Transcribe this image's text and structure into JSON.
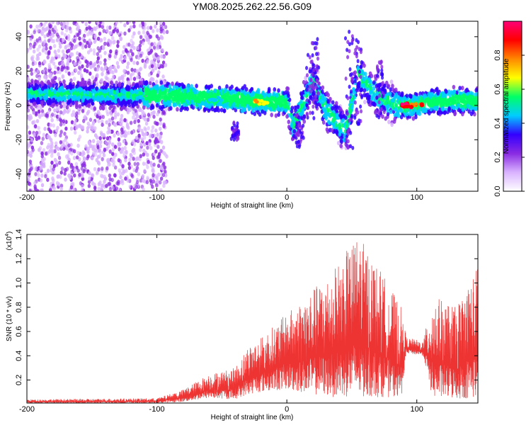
{
  "title": "YM08.2025.262.22.56.G09",
  "colors": {
    "snr_line": "#ee3333",
    "colorbar": [
      "#ffffff",
      "#d9b3ff",
      "#8a2be2",
      "#3300ff",
      "#00ccff",
      "#00ff66",
      "#ffff00",
      "#ff8800",
      "#ff0000",
      "#ff0077"
    ]
  },
  "chart_data": [
    {
      "type": "heatmap",
      "xlabel": "Height of straight line (km)",
      "ylabel": "Frequency (Hz)",
      "xlim": [
        -200,
        147
      ],
      "ylim": [
        -50,
        49
      ],
      "xticks": [
        -200,
        -100,
        0,
        100
      ],
      "xtick_labels": [
        "-200",
        "-100",
        "0",
        "100"
      ],
      "yticks": [
        -40,
        -20,
        0,
        20,
        40
      ],
      "ytick_labels": [
        "-40",
        "-20",
        "0",
        "20",
        "40"
      ],
      "colorbar": {
        "label": "Normalized spectral amplitude",
        "range": [
          0.0,
          1.0
        ],
        "ticks": [
          0.0,
          0.2,
          0.4,
          0.6,
          0.8
        ],
        "tick_labels": [
          "0.0",
          "0.2",
          "0.4",
          "0.6",
          "0.8"
        ]
      },
      "ridge": [
        {
          "x": -200,
          "y": 7
        },
        {
          "x": -140,
          "y": 6
        },
        {
          "x": -110,
          "y": 6
        },
        {
          "x": -80,
          "y": 5
        },
        {
          "x": -50,
          "y": 4
        },
        {
          "x": -30,
          "y": 3
        },
        {
          "x": -15,
          "y": 2
        },
        {
          "x": 0,
          "y": 2
        },
        {
          "x": 5,
          "y": -12
        },
        {
          "x": 20,
          "y": 14
        },
        {
          "x": 30,
          "y": -2
        },
        {
          "x": 45,
          "y": -15
        },
        {
          "x": 55,
          "y": 18
        },
        {
          "x": 70,
          "y": 5
        },
        {
          "x": 85,
          "y": 0
        },
        {
          "x": 100,
          "y": 0
        },
        {
          "x": 110,
          "y": 2
        },
        {
          "x": 130,
          "y": 3
        },
        {
          "x": 147,
          "y": 2
        }
      ],
      "hotspots": [
        {
          "x": 93,
          "y": 0,
          "amplitude": 0.97
        },
        {
          "x": 100,
          "y": 0,
          "amplitude": 0.9
        },
        {
          "x": -20,
          "y": 2,
          "amplitude": 0.75
        },
        {
          "x": -55,
          "y": 4,
          "amplitude": 0.55
        }
      ]
    },
    {
      "type": "line",
      "xlabel": "Height of straight line (km)",
      "ylabel": "SNR (10 * v/v)",
      "y_scale_label": "(x10",
      "y_scale_exponent": "4",
      "y_multiplier": 10000,
      "xlim": [
        -200,
        147
      ],
      "ylim": [
        0.01,
        1.4
      ],
      "xticks": [
        -200,
        -100,
        0,
        100
      ],
      "xtick_labels": [
        "-200",
        "-100",
        "0",
        "100"
      ],
      "yticks": [
        0.2,
        0.4,
        0.6,
        0.8,
        1.0,
        1.2,
        1.4
      ],
      "ytick_labels": [
        "0.2",
        "0.4",
        "0.6",
        "0.8",
        "1.0",
        "1.2",
        "1.4"
      ],
      "envelope": [
        {
          "x": -200,
          "low": 0.01,
          "high": 0.04
        },
        {
          "x": -100,
          "low": 0.01,
          "high": 0.05
        },
        {
          "x": -80,
          "low": 0.02,
          "high": 0.12
        },
        {
          "x": -60,
          "low": 0.05,
          "high": 0.25
        },
        {
          "x": -40,
          "low": 0.04,
          "high": 0.3
        },
        {
          "x": -30,
          "low": 0.08,
          "high": 0.48
        },
        {
          "x": -20,
          "low": 0.1,
          "high": 0.55
        },
        {
          "x": 0,
          "low": 0.12,
          "high": 0.75
        },
        {
          "x": 20,
          "low": 0.08,
          "high": 0.95
        },
        {
          "x": 35,
          "low": 0.06,
          "high": 1.1
        },
        {
          "x": 55,
          "low": 0.05,
          "high": 1.4
        },
        {
          "x": 75,
          "low": 0.06,
          "high": 1.05
        },
        {
          "x": 88,
          "low": 0.05,
          "high": 0.8
        },
        {
          "x": 92,
          "low": 0.42,
          "high": 0.55
        },
        {
          "x": 105,
          "low": 0.4,
          "high": 0.52
        },
        {
          "x": 112,
          "low": 0.05,
          "high": 0.9
        },
        {
          "x": 130,
          "low": 0.04,
          "high": 0.8
        },
        {
          "x": 147,
          "low": 0.05,
          "high": 1.15
        }
      ]
    }
  ]
}
